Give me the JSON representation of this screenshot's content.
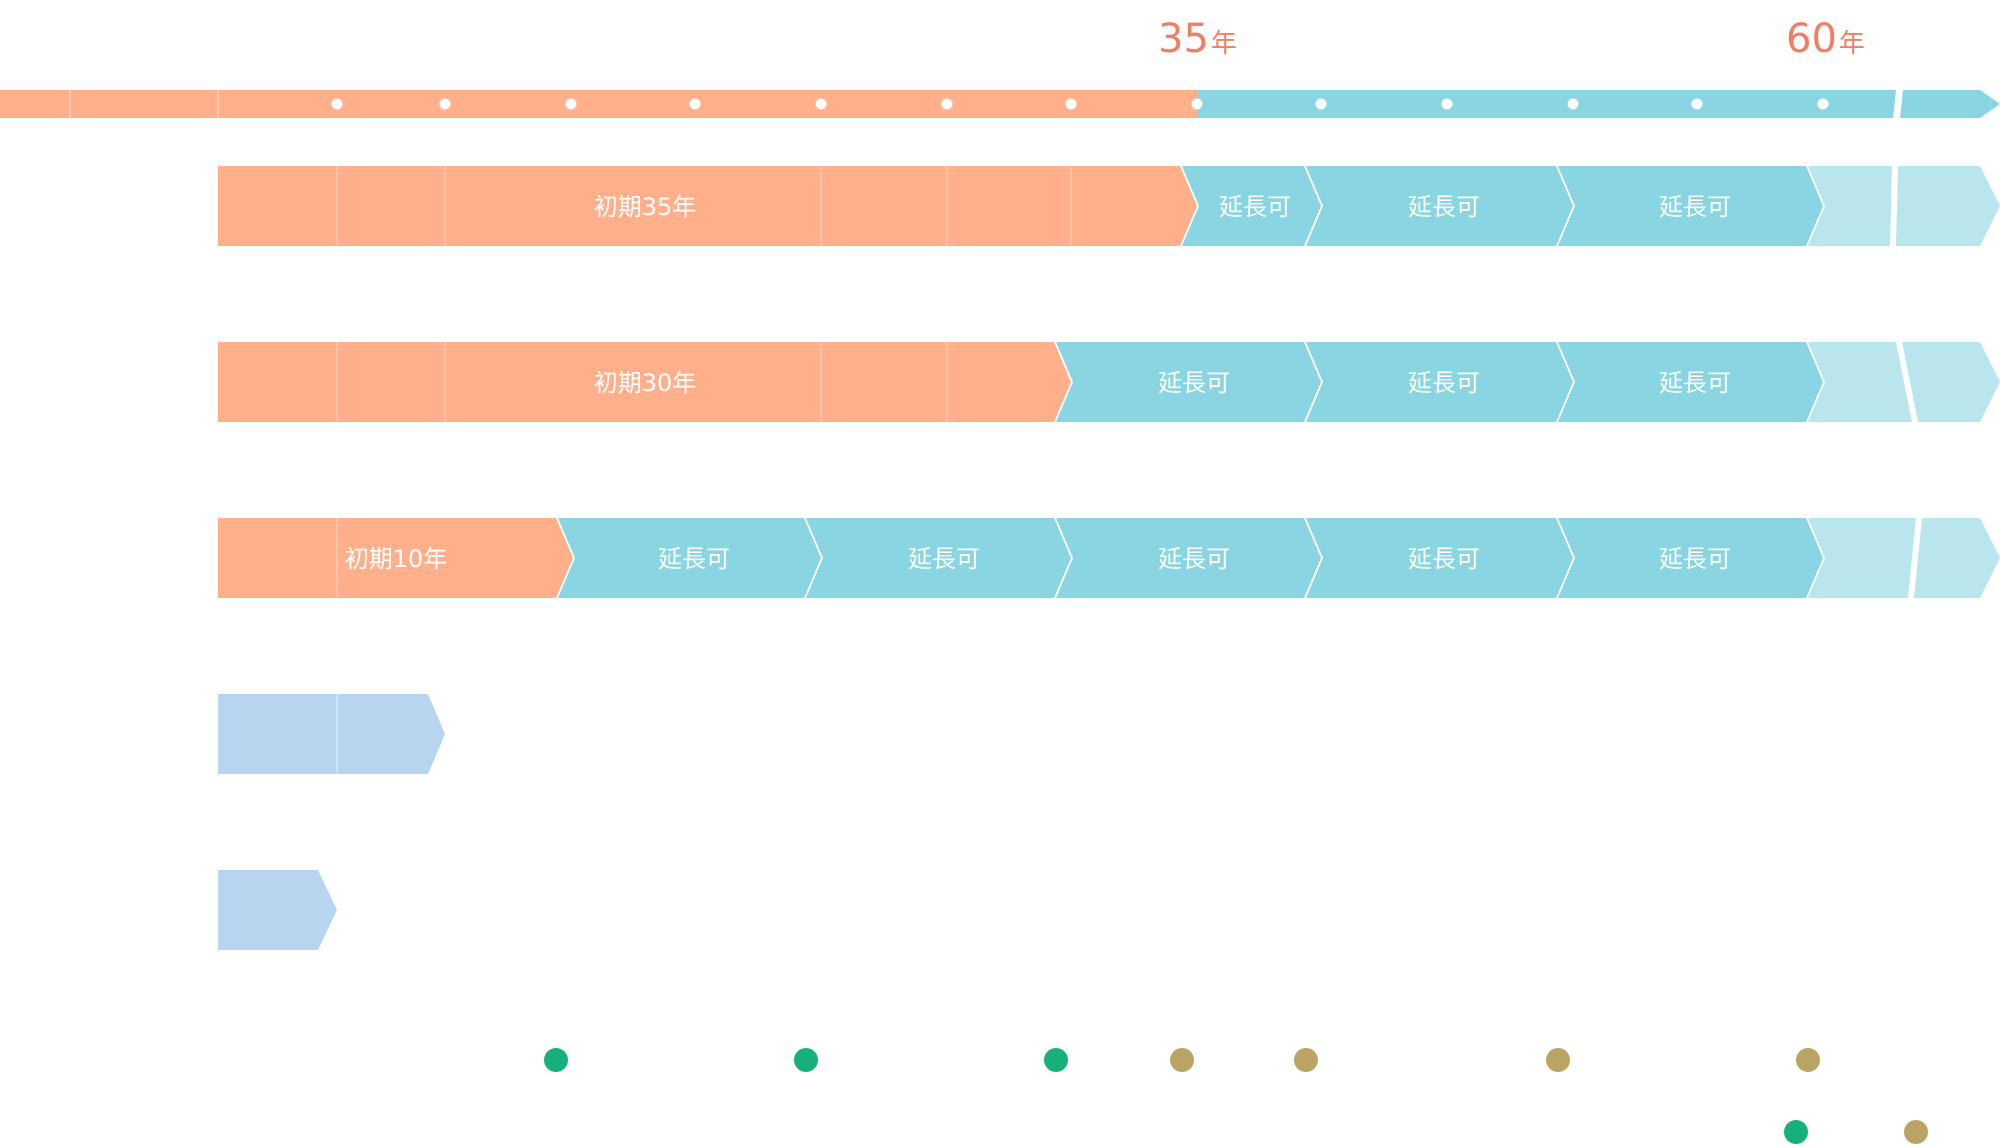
{
  "timeline": {
    "milestones": [
      {
        "num": "35",
        "unit": "年"
      },
      {
        "num": "60",
        "unit": "年"
      }
    ]
  },
  "rows": [
    {
      "initial_label": "初期35年",
      "extension_labels": [
        "延長可",
        "延長可",
        "延長可"
      ]
    },
    {
      "initial_label": "初期30年",
      "extension_labels": [
        "延長可",
        "延長可",
        "延長可"
      ]
    },
    {
      "initial_label": "初期10年",
      "extension_labels": [
        "延長可",
        "延長可",
        "延長可",
        "延長可",
        "延長可"
      ]
    }
  ],
  "colors": {
    "orange": "#ffb08b",
    "teal": "#89d5e1",
    "teal_light": "#b9e6ed",
    "blue": "#b8d5f0",
    "green_dot": "#16b07a",
    "olive_dot": "#b9a463",
    "accent_text": "#ef7f63"
  }
}
